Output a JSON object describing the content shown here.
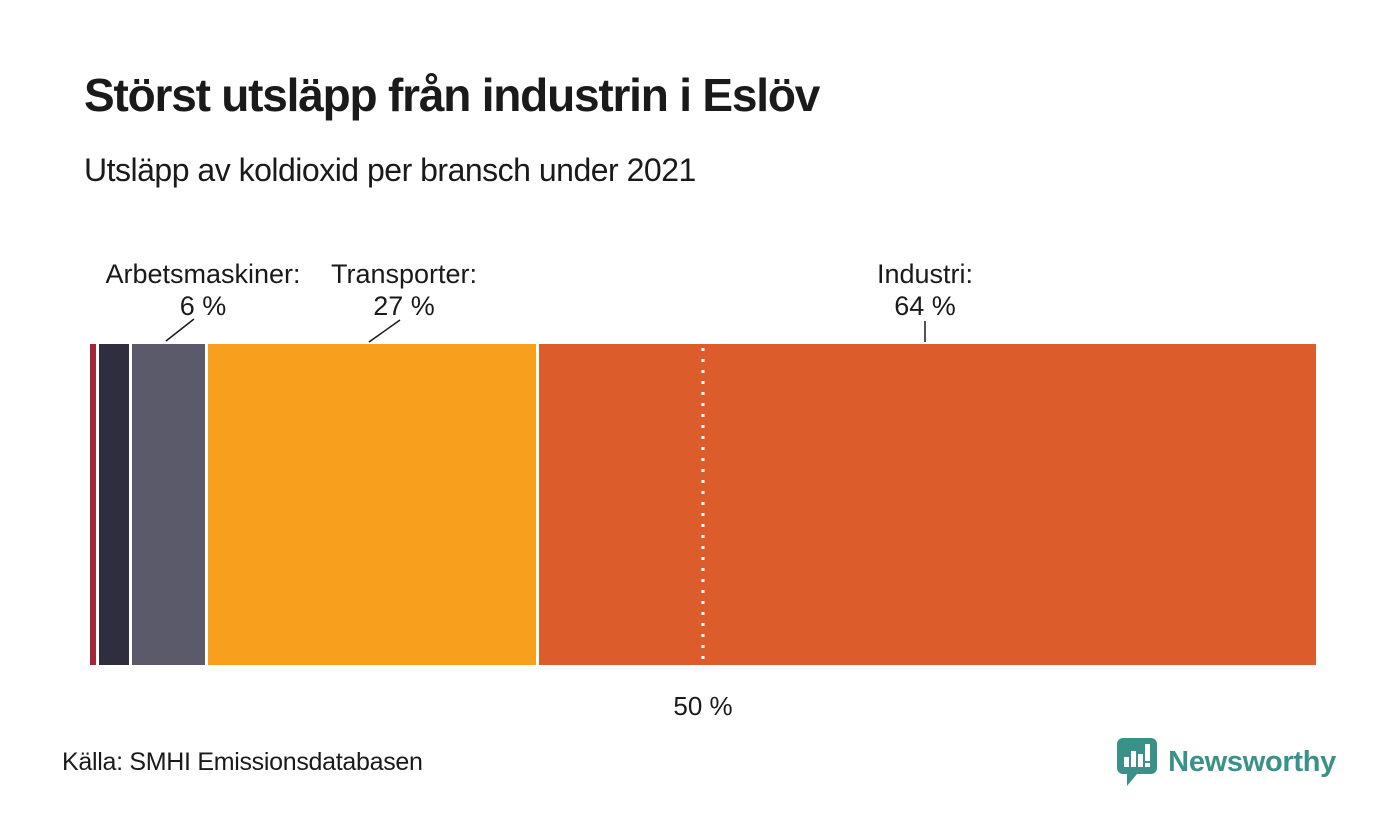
{
  "page": {
    "title": "Störst utsläpp från industrin i Eslöv",
    "subtitle": "Utsläpp av koldioxid per bransch under 2021",
    "source": "Källa: SMHI Emissionsdatabasen",
    "brand": {
      "name": "Newsworthy",
      "color": "#3a9188",
      "icon": "newsworthy-speech-bubble-bar-chart-icon"
    }
  },
  "chart_data": {
    "type": "bar",
    "variant": "stacked-horizontal-single-bar",
    "title": "Störst utsläpp från industrin i Eslöv",
    "subtitle": "Utsläpp av koldioxid per bransch under 2021",
    "unit": "%",
    "xlim": [
      0,
      100
    ],
    "grid": false,
    "legend": "none",
    "segments": [
      {
        "label": "",
        "value": 0.5,
        "color": "#a1283a",
        "annotated": false
      },
      {
        "label": "",
        "value": 2.5,
        "color": "#2f2e3e",
        "annotated": false
      },
      {
        "label": "Arbetsmaskiner",
        "value": 6,
        "color": "#5b5a6a",
        "annotated": true
      },
      {
        "label": "Transporter",
        "value": 27,
        "color": "#f8a01d",
        "annotated": true
      },
      {
        "label": "Industri",
        "value": 64,
        "color": "#dd5c2b",
        "annotated": true
      }
    ],
    "reference_line": {
      "value": 50,
      "label": "50 %",
      "style": "dotted",
      "color": "#ffffff"
    }
  },
  "annotations": {
    "labels": [
      {
        "title": "Arbetsmaskiner:",
        "value": "6 %"
      },
      {
        "title": "Transporter:",
        "value": "27 %"
      },
      {
        "title": "Industri:",
        "value": "64 %"
      }
    ]
  }
}
